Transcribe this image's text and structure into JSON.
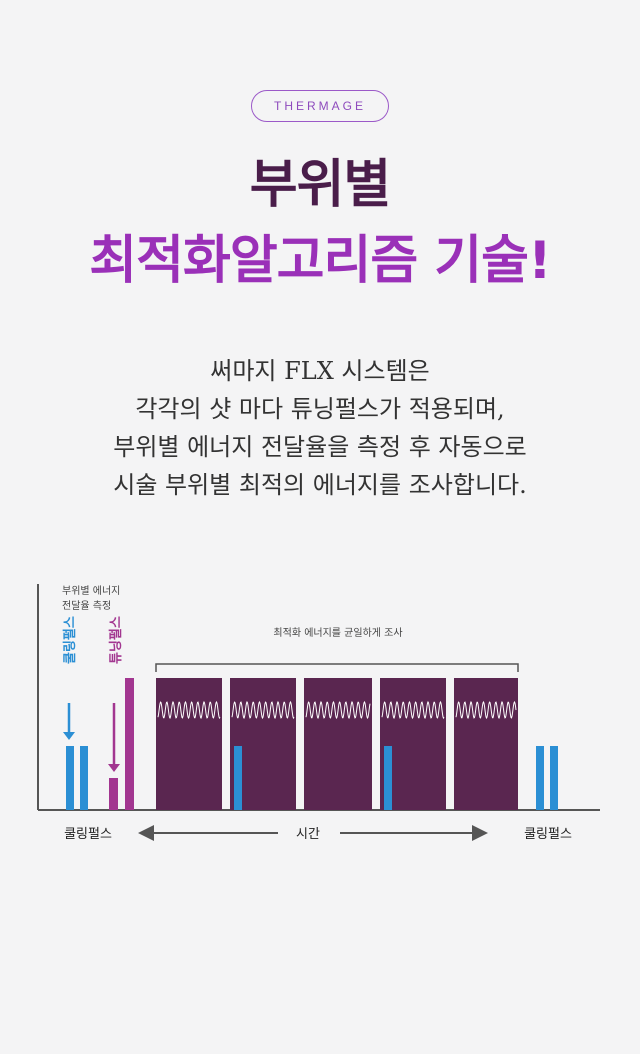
{
  "header": {
    "badge": "THERMAGE",
    "title_line1": "부위별",
    "title_line2": "최적화알고리즘 기술!"
  },
  "description": [
    "써마지 FLX 시스템은",
    "각각의 샷 마다 튜닝펄스가 적용되며,",
    "부위별 에너지 전달율을 측정 후 자동으로",
    "시술 부위별 최적의 에너지를 조사합니다."
  ],
  "diagram": {
    "y_label_line1": "부위별 에너지",
    "y_label_line2": "전달율 측정",
    "cooling_pulse_vertical": "쿨링펄스",
    "tuning_pulse_vertical": "튜닝펄스",
    "bracket_label": "최적화 에너지를 균일하게 조사",
    "x_left_label": "쿨링펄스",
    "x_center_label": "시간",
    "x_right_label": "쿨링펄스",
    "colors": {
      "cooling": "#2b8fd4",
      "tuning": "#a23690",
      "energy_block": "#5a2650",
      "wave": "#ffffff",
      "axis": "#555555"
    }
  }
}
